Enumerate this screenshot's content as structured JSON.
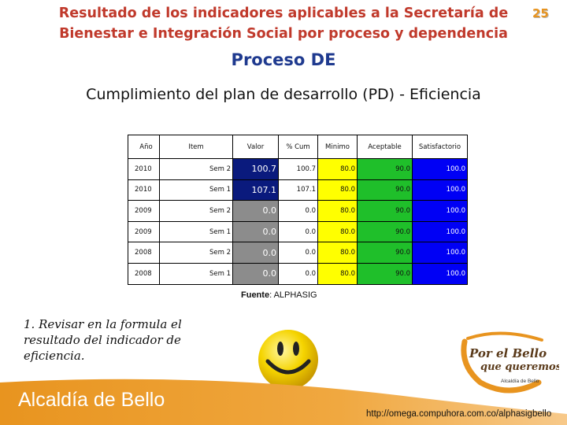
{
  "header": {
    "title_line1": "Resultado de los indicadores aplicables a la Secretaría de",
    "title_line2": "Bienestar e Integración Social  por proceso y dependencia",
    "page_number": "25",
    "process": "Proceso DE",
    "section": "Cumplimiento del plan de desarrollo (PD) - Eficiencia"
  },
  "table": {
    "columns": [
      "Año",
      "Item",
      "Valor",
      "% Cum",
      "Minimo",
      "Aceptable",
      "Satisfactorio"
    ],
    "rows": [
      {
        "anio": "2010",
        "item": "Sem 2",
        "valor": "100.7",
        "cum": "100.7",
        "minimo": "80.0",
        "aceptable": "90.0",
        "satisfactorio": "100.0"
      },
      {
        "anio": "2010",
        "item": "Sem 1",
        "valor": "107.1",
        "cum": "107.1",
        "minimo": "80.0",
        "aceptable": "90.0",
        "satisfactorio": "100.0"
      },
      {
        "anio": "2009",
        "item": "Sem 2",
        "valor": "0.0",
        "cum": "0.0",
        "minimo": "80.0",
        "aceptable": "90.0",
        "satisfactorio": "100.0"
      },
      {
        "anio": "2009",
        "item": "Sem 1",
        "valor": "0.0",
        "cum": "0.0",
        "minimo": "80.0",
        "aceptable": "90.0",
        "satisfactorio": "100.0"
      },
      {
        "anio": "2008",
        "item": "Sem 2",
        "valor": "0.0",
        "cum": "0.0",
        "minimo": "80.0",
        "aceptable": "90.0",
        "satisfactorio": "100.0"
      },
      {
        "anio": "2008",
        "item": "Sem 1",
        "valor": "0.0",
        "cum": "0.0",
        "minimo": "80.0",
        "aceptable": "90.0",
        "satisfactorio": "100.0"
      }
    ]
  },
  "fuente": {
    "label": "Fuente",
    "value": ": ALPHASIG"
  },
  "note": "1. Revisar en la formula el resultado del indicador de eficiencia.",
  "logo": {
    "line1": "Por el Bello",
    "line2": "que queremos",
    "line3": "Alcaldía de Bello"
  },
  "footer": {
    "brand": "Alcaldía de Bello",
    "url": "http://omega.compuhora.com.co/alphasigbello"
  },
  "colors": {
    "title": "#c0392b",
    "process": "#1f3a8f",
    "minimo": "#ffff00",
    "aceptable": "#1fbf2a",
    "satisfactorio": "#0000f5",
    "footer": "#e8941f"
  }
}
